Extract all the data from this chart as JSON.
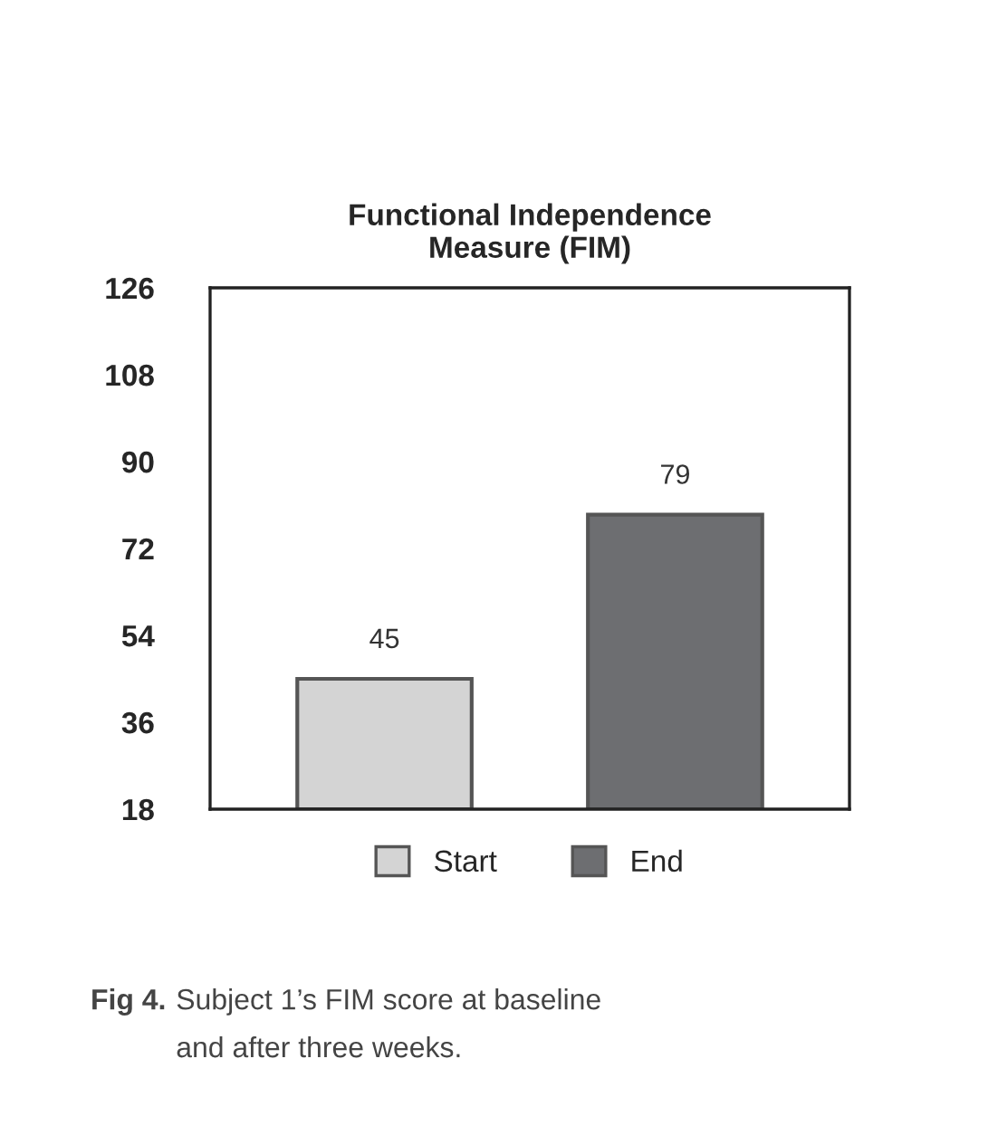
{
  "chart_data": {
    "type": "bar",
    "title": "Functional Independence\nMeasure (FIM)",
    "categories": [
      null,
      null
    ],
    "series": [
      {
        "name": "Start",
        "color": "#d4d4d4",
        "values": [
          45,
          null
        ]
      },
      {
        "name": "End",
        "color": "#6d6e71",
        "values": [
          null,
          79
        ]
      }
    ],
    "ylim": [
      18,
      126
    ],
    "yticks": [
      18,
      36,
      54,
      72,
      90,
      108,
      126
    ],
    "data_labels": true,
    "legend": "bottom",
    "annotations": [
      "Fig 4.",
      "Subject 1’s FIM score at baseline\nand after three weeks."
    ]
  }
}
